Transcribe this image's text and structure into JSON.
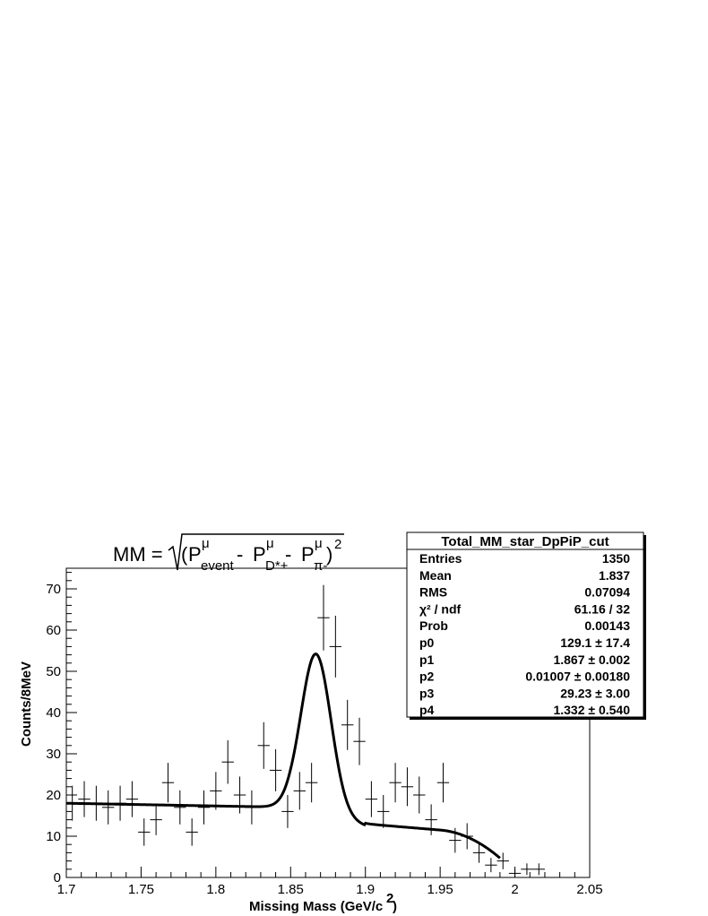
{
  "chart_data": {
    "type": "scatter",
    "title_parts": {
      "lhs": "MM = ",
      "p": "P",
      "mu": "μ",
      "sub_event": "event",
      "sub_dstar": "D*+",
      "sub_pi": "π-",
      "minus": " - ",
      "open_paren": "(",
      "close_paren": ")",
      "sq": "2"
    },
    "xlabel": "Missing Mass (GeV/c",
    "xlabel_sup": "2",
    "xlabel_end": ")",
    "ylabel": "Counts/8MeV",
    "xlim": [
      1.7,
      2.05
    ],
    "ylim": [
      0,
      75
    ],
    "x_ticks": [
      1.7,
      1.75,
      1.8,
      1.85,
      1.9,
      1.95,
      2,
      2.05
    ],
    "x_tick_labels": [
      "1.7",
      "1.75",
      "1.8",
      "1.85",
      "1.9",
      "1.95",
      "2",
      "2.05"
    ],
    "y_ticks": [
      0,
      10,
      20,
      30,
      40,
      50,
      60,
      70
    ],
    "y_tick_labels": [
      "0",
      "10",
      "20",
      "30",
      "40",
      "50",
      "60",
      "70"
    ],
    "bin_width": 0.008,
    "points": [
      {
        "x": 1.7,
        "y": 18
      },
      {
        "x": 1.708,
        "y": 19
      },
      {
        "x": 1.716,
        "y": 18
      },
      {
        "x": 1.724,
        "y": 17
      },
      {
        "x": 1.732,
        "y": 18
      },
      {
        "x": 1.74,
        "y": 19
      },
      {
        "x": 1.748,
        "y": 11
      },
      {
        "x": 1.756,
        "y": 14
      },
      {
        "x": 1.764,
        "y": 23
      },
      {
        "x": 1.772,
        "y": 17
      },
      {
        "x": 1.78,
        "y": 11
      },
      {
        "x": 1.788,
        "y": 17
      },
      {
        "x": 1.796,
        "y": 21
      },
      {
        "x": 1.804,
        "y": 28
      },
      {
        "x": 1.812,
        "y": 20
      },
      {
        "x": 1.82,
        "y": 17
      },
      {
        "x": 1.828,
        "y": 32
      },
      {
        "x": 1.836,
        "y": 26
      },
      {
        "x": 1.844,
        "y": 16
      },
      {
        "x": 1.852,
        "y": 21
      },
      {
        "x": 1.86,
        "y": 23
      },
      {
        "x": 1.868,
        "y": 63
      },
      {
        "x": 1.876,
        "y": 56
      },
      {
        "x": 1.884,
        "y": 37
      },
      {
        "x": 1.892,
        "y": 33
      },
      {
        "x": 1.9,
        "y": 19
      },
      {
        "x": 1.908,
        "y": 16
      },
      {
        "x": 1.916,
        "y": 23
      },
      {
        "x": 1.924,
        "y": 22
      },
      {
        "x": 1.932,
        "y": 20
      },
      {
        "x": 1.94,
        "y": 14
      },
      {
        "x": 1.948,
        "y": 23
      },
      {
        "x": 1.956,
        "y": 9
      },
      {
        "x": 1.964,
        "y": 10
      },
      {
        "x": 1.972,
        "y": 6
      },
      {
        "x": 1.98,
        "y": 3
      },
      {
        "x": 1.988,
        "y": 4
      },
      {
        "x": 1.996,
        "y": 1
      },
      {
        "x": 2.004,
        "y": 2
      },
      {
        "x": 2.012,
        "y": 2
      }
    ],
    "fit": {
      "function": "gaussian + polynomial background",
      "params": {
        "p0": 129.1,
        "p1": 1.867,
        "p2": 0.01007,
        "p3": 29.23,
        "p4": 1.332
      },
      "x_range": [
        1.7,
        1.99
      ]
    },
    "stats_box": {
      "title": "Total_MM_star_DpPiP_cut",
      "rows": [
        {
          "label": "Entries",
          "value": "1350"
        },
        {
          "label": "Mean",
          "value": "1.837"
        },
        {
          "label": "RMS",
          "value": "0.07094"
        },
        {
          "label": "χ² / ndf",
          "value": "61.16 / 32"
        },
        {
          "label": "Prob",
          "value": "0.00143"
        },
        {
          "label": "p0",
          "value": "129.1 ± 17.4"
        },
        {
          "label": "p1",
          "value": "1.867 ± 0.002"
        },
        {
          "label": "p2",
          "value": "0.01007 ± 0.00180"
        },
        {
          "label": "p3",
          "value": "29.23 ± 3.00"
        },
        {
          "label": "p4",
          "value": "1.332 ± 0.540"
        }
      ]
    },
    "legend_position": "top-right",
    "grid": false
  }
}
